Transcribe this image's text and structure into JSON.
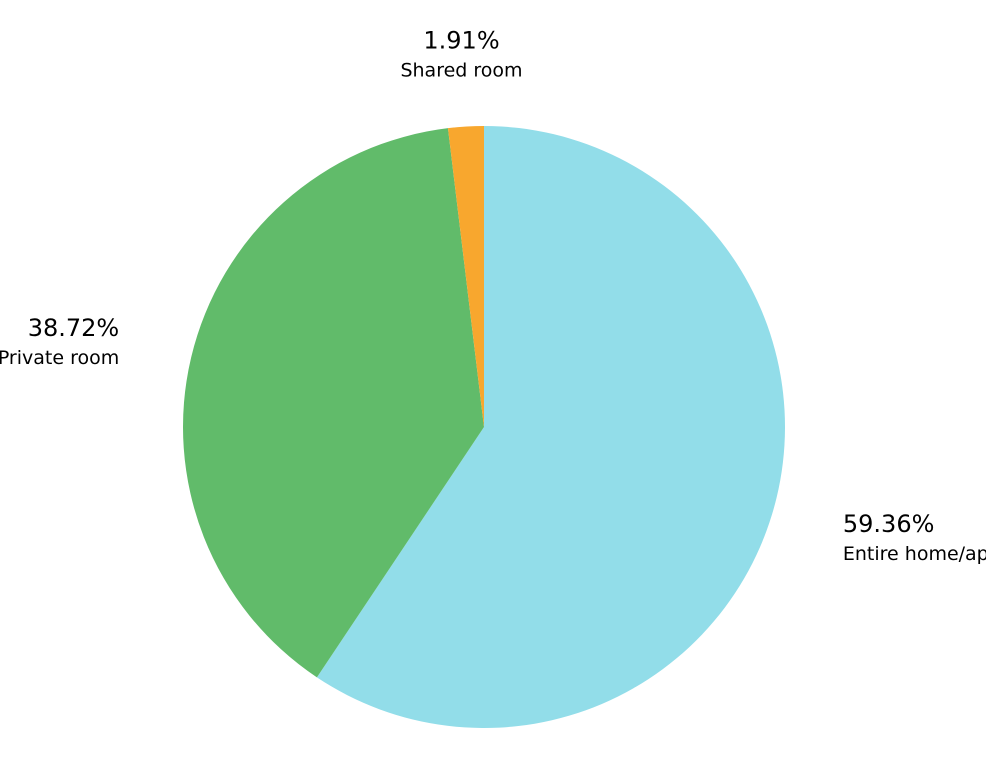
{
  "chart_data": {
    "type": "pie",
    "categories": [
      "Entire home/apt",
      "Private room",
      "Shared room"
    ],
    "values": [
      59.36,
      38.72,
      1.91
    ],
    "value_labels": [
      "59.36%",
      "38.72%",
      "1.91%"
    ],
    "colors": [
      "#92dde9",
      "#61bb6a",
      "#f8a72e"
    ],
    "start": "12 o'clock",
    "direction": "clockwise",
    "legend": "none",
    "labels_placement": "outside each slice"
  }
}
